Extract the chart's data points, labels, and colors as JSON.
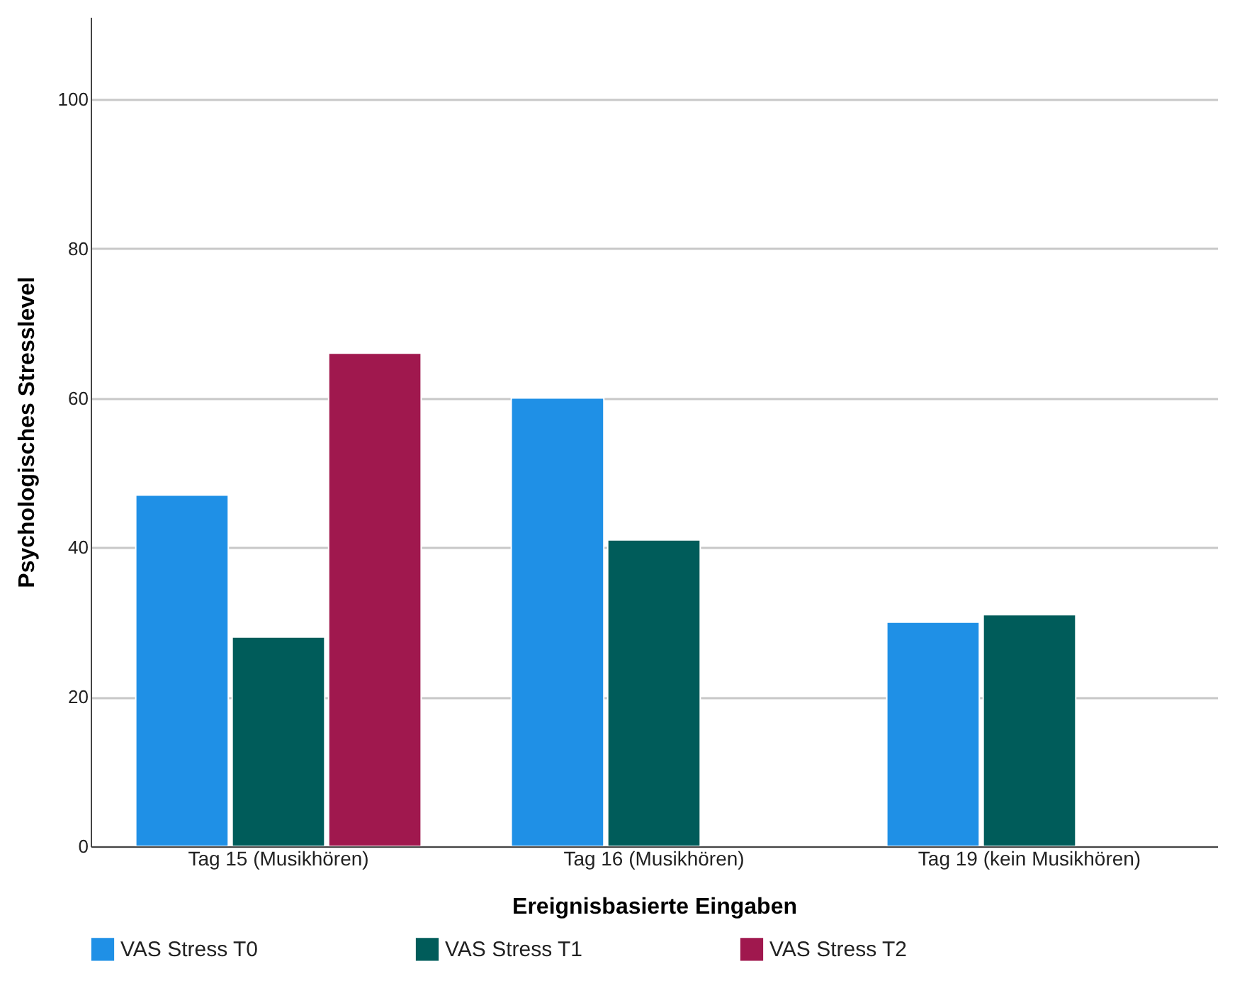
{
  "chart_data": {
    "type": "bar",
    "xlabel": "Ereignisbasierte Eingaben",
    "ylabel": "Psychologisches Stresslevel",
    "categories": [
      "Tag 15 (Musikhören)",
      "Tag 16 (Musikhören)",
      "Tag 19 (kein Musikhören)"
    ],
    "series": [
      {
        "name": "VAS Stress T0",
        "color": "#1f90e6",
        "values": [
          47,
          60,
          30
        ]
      },
      {
        "name": "VAS Stress T1",
        "color": "#005c5a",
        "values": [
          28,
          41,
          31
        ]
      },
      {
        "name": "VAS Stress T2",
        "color": "#a0184e",
        "values": [
          66,
          null,
          null
        ]
      }
    ],
    "ylim": [
      0,
      111
    ],
    "yticks": [
      0,
      20,
      40,
      60,
      80,
      100
    ],
    "grid": "y",
    "legend": "bottom"
  }
}
